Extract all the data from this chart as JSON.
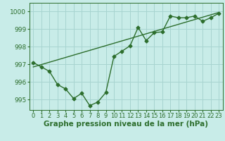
{
  "title": "",
  "xlabel": "Graphe pression niveau de la mer (hPa)",
  "background_color": "#c8ece8",
  "grid_color": "#a8d4d0",
  "line_color": "#2d6e2d",
  "xlim": [
    -0.5,
    23.5
  ],
  "ylim": [
    994.4,
    1000.5
  ],
  "yticks": [
    995,
    996,
    997,
    998,
    999,
    1000
  ],
  "xtick_labels": [
    "0",
    "1",
    "2",
    "3",
    "4",
    "5",
    "6",
    "7",
    "8",
    "9",
    "10",
    "11",
    "12",
    "13",
    "14",
    "15",
    "16",
    "17",
    "18",
    "19",
    "20",
    "21",
    "22",
    "23"
  ],
  "x": [
    0,
    1,
    2,
    3,
    4,
    5,
    6,
    7,
    8,
    9,
    10,
    11,
    12,
    13,
    14,
    15,
    16,
    17,
    18,
    19,
    20,
    21,
    22,
    23
  ],
  "y_main": [
    997.1,
    996.85,
    996.6,
    995.85,
    995.6,
    995.05,
    995.35,
    994.65,
    994.85,
    995.4,
    997.45,
    997.75,
    998.05,
    999.1,
    998.35,
    998.8,
    998.85,
    999.75,
    999.65,
    999.65,
    999.75,
    999.45,
    999.65,
    999.9
  ],
  "y_trend_x": [
    0,
    23
  ],
  "y_trend_y": [
    996.85,
    999.95
  ],
  "font_color": "#2d6e2d",
  "marker": "D",
  "markersize": 2.5,
  "linewidth": 1.0,
  "trend_linewidth": 1.0,
  "xlabel_fontsize": 7.5,
  "tick_fontsize": 6.5
}
